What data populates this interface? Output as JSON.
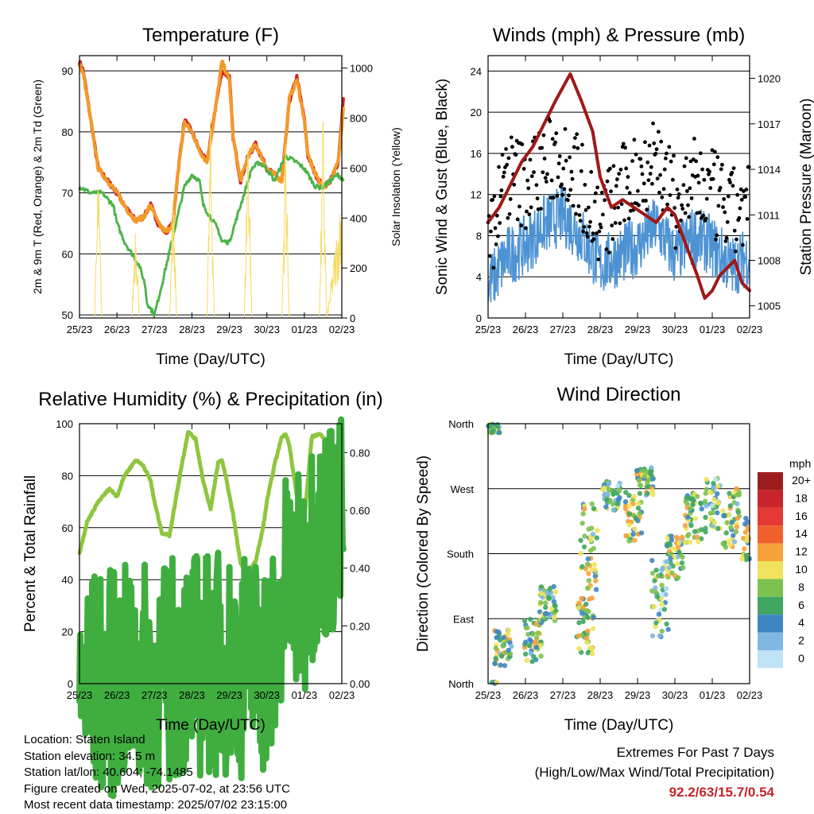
{
  "chart_data": [
    {
      "type": "line",
      "title": "Temperature (F)",
      "xlabel": "Time (Day/UTC)",
      "ylabel": "2m & 9m T (Red, Orange) & 2m Td (Green)",
      "ylabel_right": "Solar Insolation (Yellow)",
      "x_ticks": [
        "25/23",
        "26/23",
        "27/23",
        "28/23",
        "29/23",
        "30/23",
        "01/23",
        "02/23"
      ],
      "ylim": [
        49.5,
        92.5
      ],
      "y_ticks": [
        50,
        60,
        70,
        80,
        90
      ],
      "ylim_right": [
        0,
        1050
      ],
      "y_ticks_right": [
        0,
        200,
        400,
        600,
        800,
        1000
      ],
      "series": [
        {
          "color": "#cc2222",
          "x": [
            0,
            0.1,
            0.3,
            0.5,
            0.75,
            1,
            1.3,
            1.5,
            1.7,
            1.9,
            2.1,
            2.3,
            2.5,
            2.6,
            2.8,
            3,
            3.2,
            3.4,
            3.6,
            3.8,
            4,
            4.1,
            4.3,
            4.5,
            4.7,
            5,
            5.2,
            5.4,
            5.6,
            5.8,
            6,
            6.1,
            6.3,
            6.5,
            6.7,
            6.9,
            7,
            7.05
          ],
          "y": [
            91.5,
            90,
            82,
            74,
            72,
            70,
            67,
            65.5,
            66,
            68,
            65,
            63.5,
            65,
            72,
            82,
            80,
            77,
            75,
            83,
            90,
            89,
            79,
            72,
            76,
            78,
            74,
            73,
            72,
            85,
            89,
            82,
            76,
            73,
            71,
            72,
            75,
            82,
            86
          ]
        },
        {
          "color": "#f49a2a",
          "x": [
            0,
            0.1,
            0.3,
            0.5,
            0.75,
            1,
            1.3,
            1.5,
            1.7,
            1.9,
            2.1,
            2.3,
            2.5,
            2.6,
            2.8,
            3,
            3.2,
            3.4,
            3.6,
            3.8,
            4,
            4.1,
            4.3,
            4.5,
            4.7,
            5,
            5.2,
            5.4,
            5.6,
            5.8,
            6,
            6.1,
            6.3,
            6.5,
            6.7,
            6.9,
            7,
            7.05
          ],
          "y": [
            91,
            89.5,
            82,
            74,
            72,
            70,
            67,
            65.5,
            66,
            68,
            65,
            63.5,
            65,
            72,
            81.5,
            80,
            77,
            75,
            82.5,
            91.5,
            88.5,
            79,
            72,
            76,
            78,
            74,
            73,
            72,
            85.5,
            88.5,
            82,
            76,
            73,
            71,
            72,
            75,
            81,
            85
          ]
        },
        {
          "color": "#4db349",
          "x": [
            0,
            0.3,
            0.6,
            0.9,
            1,
            1.2,
            1.4,
            1.6,
            1.75,
            1.8,
            1.9,
            2,
            2.2,
            2.5,
            2.8,
            3,
            3.2,
            3.3,
            3.5,
            3.7,
            3.8,
            4,
            4.2,
            4.4,
            4.6,
            4.8,
            5,
            5.2,
            5.5,
            5.8,
            6,
            6.1,
            6.3,
            6.5,
            6.7,
            6.9,
            7.05
          ],
          "y": [
            71,
            70,
            70,
            68,
            65,
            62,
            60,
            58,
            55,
            52,
            51,
            50,
            55,
            63,
            71,
            73,
            72,
            68,
            66,
            64,
            62,
            62,
            66,
            70,
            74,
            75,
            74,
            72,
            76,
            75,
            74,
            73,
            71,
            71,
            72,
            73,
            72
          ]
        },
        {
          "color": "#f7dc66",
          "axis": "right",
          "x": [
            0,
            0.4,
            0.5,
            0.6,
            1,
            1.4,
            1.5,
            1.6,
            2,
            2.4,
            2.5,
            2.6,
            3,
            3.4,
            3.5,
            3.6,
            4,
            4.4,
            4.5,
            4.6,
            5,
            5.4,
            5.5,
            5.6,
            6,
            6.4,
            6.5,
            6.6,
            7.05
          ],
          "y": [
            0,
            0,
            650,
            0,
            0,
            0,
            480,
            0,
            0,
            0,
            520,
            0,
            0,
            0,
            900,
            0,
            0,
            0,
            950,
            0,
            0,
            0,
            850,
            0,
            0,
            0,
            880,
            0,
            600
          ]
        }
      ]
    },
    {
      "type": "line",
      "title": "Winds (mph) & Pressure (mb)",
      "xlabel": "Time (Day/UTC)",
      "ylabel": "Sonic Wind & Gust (Blue, Black)",
      "ylabel_right": "Station Pressure (Maroon)",
      "x_ticks": [
        "25/23",
        "26/23",
        "27/23",
        "28/23",
        "29/23",
        "30/23",
        "01/23",
        "02/23"
      ],
      "ylim": [
        0,
        25.5
      ],
      "y_ticks": [
        0,
        4,
        8,
        12,
        16,
        20,
        24
      ],
      "ylim_right": [
        1004.2,
        1021.5
      ],
      "y_ticks_right": [
        1005,
        1008,
        1011,
        1014,
        1017,
        1020
      ],
      "series": [
        {
          "name": "Sonic Wind",
          "color": "#4d93d4",
          "x": [
            0,
            0.5,
            1,
            1.5,
            2,
            2.5,
            3,
            3.5,
            4,
            4.5,
            5,
            5.5,
            6,
            6.5,
            7
          ],
          "y": [
            3,
            6,
            7,
            9,
            10,
            8,
            5,
            6,
            7,
            9,
            6,
            8,
            7,
            5,
            6
          ]
        },
        {
          "name": "Gust",
          "color": "#000000",
          "x": [
            0,
            0.5,
            1,
            1.5,
            2,
            2.5,
            3,
            3.5,
            4,
            4.5,
            5,
            5.5,
            6,
            6.5,
            7
          ],
          "y": [
            7,
            14,
            13,
            15,
            16,
            13,
            9,
            12,
            14,
            16,
            11,
            13,
            12,
            10,
            11
          ]
        },
        {
          "name": "Station Pressure",
          "color": "#a01818",
          "axis": "right",
          "x": [
            0,
            0.3,
            0.6,
            0.9,
            1.2,
            1.5,
            1.8,
            2.2,
            2.5,
            2.8,
            3,
            3.3,
            3.6,
            3.9,
            4.2,
            4.5,
            4.8,
            5,
            5.3,
            5.6,
            5.8,
            6,
            6.2,
            6.4,
            6.6,
            6.8,
            7
          ],
          "y": [
            1010.5,
            1011.5,
            1013,
            1014.5,
            1015.5,
            1017,
            1018.5,
            1020.3,
            1018.5,
            1016.5,
            1013.5,
            1011.5,
            1012,
            1011.5,
            1011,
            1010.5,
            1011.5,
            1011,
            1009,
            1007,
            1005.5,
            1006,
            1007,
            1007.5,
            1008,
            1006.5,
            1006
          ]
        }
      ]
    },
    {
      "type": "line",
      "title": "Relative Humidity (%) & Precipitation (in)",
      "xlabel": "Time (Day/UTC)",
      "ylabel": "Percent & Total Rainfall",
      "x_ticks": [
        "25/23",
        "26/23",
        "27/23",
        "28/23",
        "29/23",
        "30/23",
        "01/23",
        "02/23"
      ],
      "ylim": [
        0,
        100
      ],
      "y_ticks": [
        0,
        20,
        40,
        60,
        80,
        100
      ],
      "ylim_right": [
        0,
        0.9
      ],
      "y_ticks_right": [
        "0.00",
        "0.20",
        "0.40",
        "0.60",
        "0.80"
      ],
      "series": [
        {
          "color": "#8ec63f",
          "x": [
            0,
            0.2,
            0.5,
            0.8,
            1,
            1.2,
            1.5,
            1.7,
            1.9,
            2,
            2.2,
            2.4,
            2.5,
            2.7,
            2.9,
            3.1,
            3.3,
            3.5,
            3.7,
            3.8,
            3.9,
            4.1,
            4.3,
            4.5,
            4.7,
            4.9,
            5,
            5.2,
            5.4,
            5.5,
            5.6,
            5.8,
            6,
            6.2,
            6.4,
            6.6,
            6.8,
            7,
            7.05
          ],
          "y": [
            50,
            62,
            70,
            75,
            72,
            80,
            86,
            84,
            78,
            70,
            58,
            57,
            65,
            82,
            97,
            94,
            78,
            67,
            85,
            86,
            80,
            65,
            46,
            43,
            47,
            60,
            70,
            84,
            95,
            96,
            92,
            72,
            63,
            95,
            96,
            94,
            88,
            72,
            50
          ]
        },
        {
          "color": "#3fae3f",
          "axis": "right",
          "x": [
            0,
            0.9,
            1,
            1.5,
            2,
            2.2,
            2.4,
            2.5,
            3,
            4,
            4.5,
            5,
            5.2,
            5.25,
            5.3,
            5.4,
            5.6,
            5.8,
            6,
            6.1,
            6.2,
            6.4,
            6.6,
            7,
            7.05
          ],
          "y": [
            0,
            0,
            0.01,
            0.02,
            0.02,
            0.02,
            0.03,
            0.06,
            0.07,
            0.07,
            0.07,
            0.08,
            0.09,
            0.1,
            0.14,
            0.32,
            0.33,
            0.33,
            0.33,
            0.46,
            0.48,
            0.49,
            0.54,
            0.54,
            0.54
          ]
        }
      ]
    },
    {
      "type": "scatter",
      "title": "Wind Direction",
      "xlabel": "Time (Day/UTC)",
      "ylabel": "Direction (Colored By Speed)",
      "x_ticks": [
        "25/23",
        "26/23",
        "27/23",
        "28/23",
        "29/23",
        "30/23",
        "01/23",
        "02/23"
      ],
      "y_ticks": [
        "North",
        "West",
        "South",
        "East",
        "North"
      ],
      "colorbar_title": "mph",
      "colorbar_labels": [
        "20+",
        "18",
        "16",
        "14",
        "12",
        "10",
        "8",
        "6",
        "4",
        "2",
        "0"
      ],
      "colorbar_colors": [
        "#9b1c1c",
        "#c9242b",
        "#e53935",
        "#f0602d",
        "#f6a23c",
        "#eee35a",
        "#7cc24f",
        "#40a661",
        "#3d86c2",
        "#7fb8e2",
        "#bfe3f5"
      ],
      "clusters": [
        {
          "x": 0.1,
          "y": 355,
          "spread": 8
        },
        {
          "x": 0.4,
          "y": 50,
          "spread": 25
        },
        {
          "x": 1.2,
          "y": 60,
          "spread": 30
        },
        {
          "x": 1.6,
          "y": 110,
          "spread": 25
        },
        {
          "x": 2.6,
          "y": 80,
          "spread": 40
        },
        {
          "x": 2.7,
          "y": 190,
          "spread": 60
        },
        {
          "x": 3.3,
          "y": 260,
          "spread": 20
        },
        {
          "x": 3.9,
          "y": 230,
          "spread": 35
        },
        {
          "x": 4.2,
          "y": 280,
          "spread": 20
        },
        {
          "x": 4.6,
          "y": 120,
          "spread": 60
        },
        {
          "x": 5,
          "y": 175,
          "spread": 30
        },
        {
          "x": 5.5,
          "y": 230,
          "spread": 35
        },
        {
          "x": 6,
          "y": 250,
          "spread": 40
        },
        {
          "x": 6.5,
          "y": 230,
          "spread": 45
        },
        {
          "x": 7,
          "y": 200,
          "spread": 30
        }
      ]
    }
  ],
  "info": {
    "location": "Location: Staten Island",
    "elevation": "Station elevation: 34.5 m",
    "latlon": "Station lat/lon: 40.604; -74.1485",
    "created": "Figure created on Wed, 2025-07-02, at 23:56 UTC",
    "recent": "Most recent data timestamp: 2025/07/02 23:15:00"
  },
  "extremes": {
    "title": "Extremes For Past 7 Days",
    "subtitle": "(High/Low/Max Wind/Total Precipitation)",
    "values": "92.2/63/15.7/0.54"
  }
}
